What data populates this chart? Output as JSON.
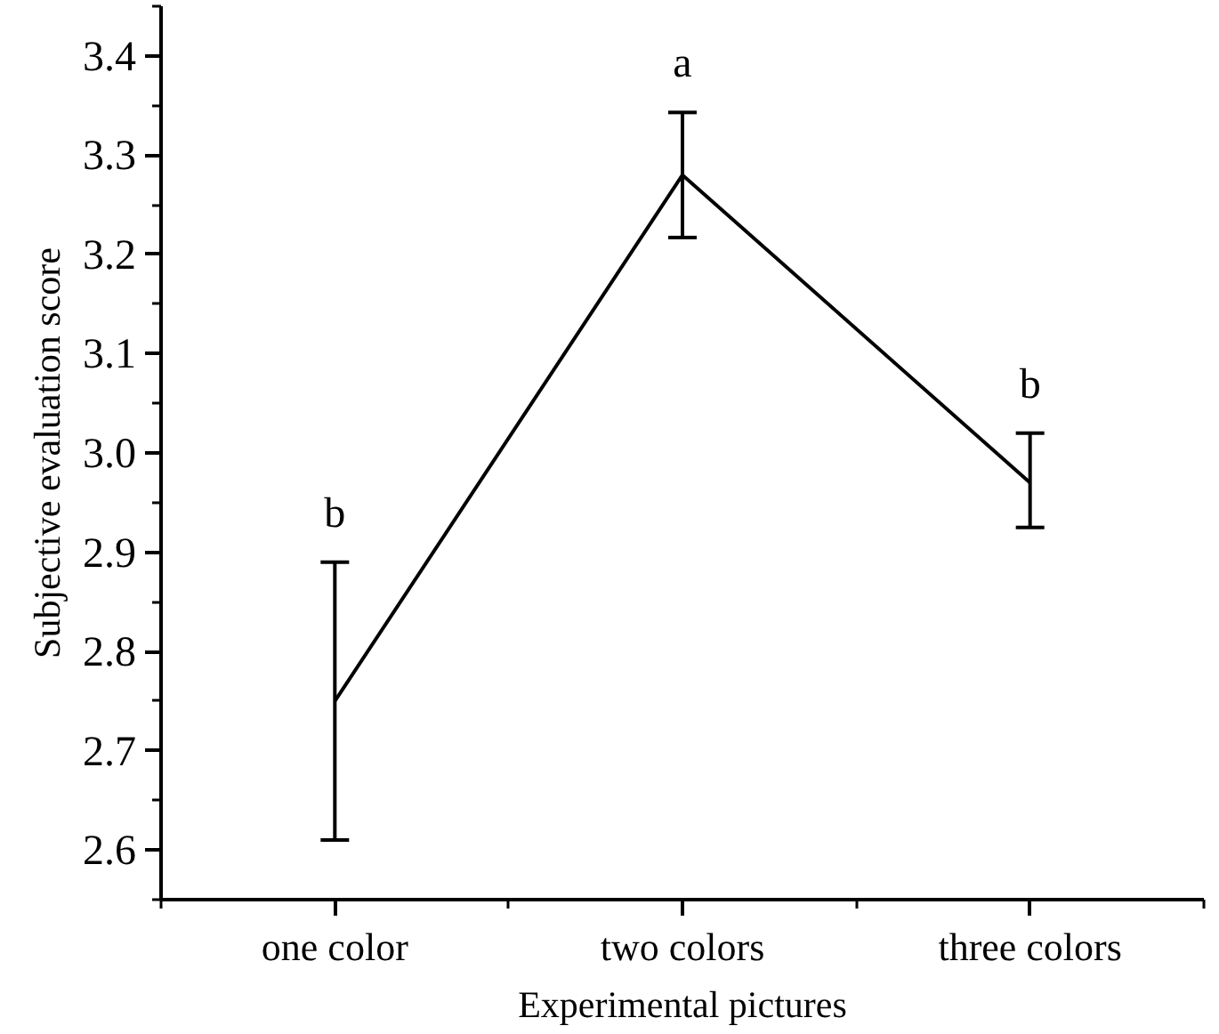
{
  "chart_data": {
    "type": "line",
    "xlabel": "Experimental pictures",
    "ylabel": "Subjective evaluation score",
    "categories": [
      "one color",
      "two colors",
      "three colors"
    ],
    "series": [
      {
        "color": "#000000",
        "values": [
          2.75,
          3.28,
          2.97
        ],
        "errors": [
          0.14,
          0.063,
          [
            2.925,
            3.02
          ]
        ]
      }
    ],
    "ylim": [
      2.55,
      3.45
    ],
    "yticks": [
      2.6,
      2.7,
      2.8,
      2.9,
      {
        "value": 3,
        "label": "3.0"
      },
      3.1,
      3.2,
      3.3,
      3.4
    ],
    "annotations": [
      "b",
      "a",
      "b"
    ],
    "grid": false,
    "marker": "none",
    "line_style": "solid"
  }
}
